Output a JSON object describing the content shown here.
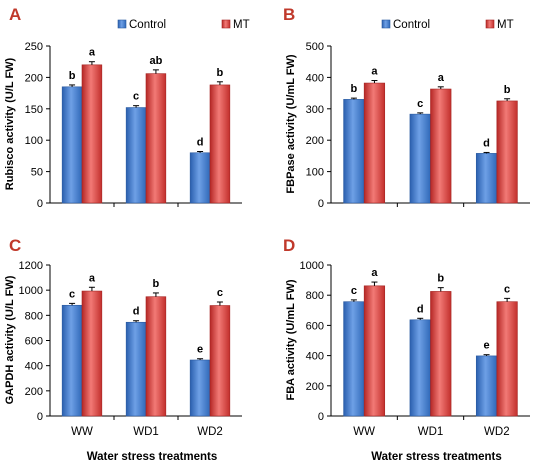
{
  "colors": {
    "control": "#3f79c9",
    "mt": "#d83a38",
    "panel_letter": "#c0392b"
  },
  "legend": [
    "Control",
    "MT"
  ],
  "x_axis_title": "Water stress treatments",
  "chart_data": [
    {
      "panel": "A",
      "type": "bar",
      "categories": [
        "WW",
        "WD1",
        "WD2"
      ],
      "ylabel": "Rubisco activity (U/L FW)",
      "ylim": [
        0,
        250
      ],
      "yticks": [
        0,
        50,
        100,
        150,
        200,
        250
      ],
      "show_x_labels": false,
      "series": [
        {
          "name": "Control",
          "values": [
            185,
            152,
            80
          ],
          "errors": [
            3,
            3,
            2
          ],
          "letters": [
            "b",
            "c",
            "d"
          ]
        },
        {
          "name": "MT",
          "values": [
            220,
            206,
            188
          ],
          "errors": [
            5,
            6,
            5
          ],
          "letters": [
            "a",
            "ab",
            "b"
          ]
        }
      ]
    },
    {
      "panel": "B",
      "type": "bar",
      "categories": [
        "WW",
        "WD1",
        "WD2"
      ],
      "ylabel": "FBPase activity (U/mL FW)",
      "ylim": [
        0,
        500
      ],
      "yticks": [
        0,
        100,
        200,
        300,
        400,
        500
      ],
      "show_x_labels": false,
      "series": [
        {
          "name": "Control",
          "values": [
            330,
            283,
            158
          ],
          "errors": [
            4,
            4,
            3
          ],
          "letters": [
            "b",
            "c",
            "d"
          ]
        },
        {
          "name": "MT",
          "values": [
            382,
            363,
            325
          ],
          "errors": [
            8,
            7,
            7
          ],
          "letters": [
            "a",
            "a",
            "b"
          ]
        }
      ]
    },
    {
      "panel": "C",
      "type": "bar",
      "categories": [
        "WW",
        "WD1",
        "WD2"
      ],
      "ylabel": "GAPDH activity (U/L FW)",
      "ylim": [
        0,
        1200
      ],
      "yticks": [
        0,
        200,
        400,
        600,
        800,
        1000,
        1200
      ],
      "show_x_labels": true,
      "series": [
        {
          "name": "Control",
          "values": [
            880,
            745,
            445
          ],
          "errors": [
            15,
            12,
            10
          ],
          "letters": [
            "c",
            "d",
            "e"
          ]
        },
        {
          "name": "MT",
          "values": [
            993,
            948,
            878
          ],
          "errors": [
            30,
            30,
            28
          ],
          "letters": [
            "a",
            "b",
            "c"
          ]
        }
      ]
    },
    {
      "panel": "D",
      "type": "bar",
      "categories": [
        "WW",
        "WD1",
        "WD2"
      ],
      "ylabel": "FBA activity (U/mL FW)",
      "ylim": [
        0,
        1000
      ],
      "yticks": [
        0,
        200,
        400,
        600,
        800,
        1000
      ],
      "show_x_labels": true,
      "series": [
        {
          "name": "Control",
          "values": [
            757,
            637,
            398
          ],
          "errors": [
            12,
            10,
            8
          ],
          "letters": [
            "c",
            "d",
            "e"
          ]
        },
        {
          "name": "MT",
          "values": [
            862,
            825,
            757
          ],
          "errors": [
            25,
            25,
            22
          ],
          "letters": [
            "a",
            "b",
            "c"
          ]
        }
      ]
    }
  ]
}
